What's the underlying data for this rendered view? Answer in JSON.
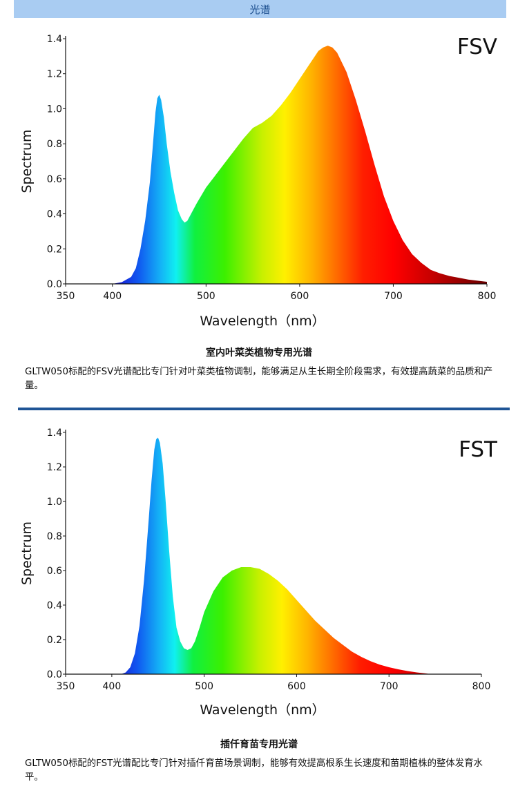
{
  "header": {
    "title": "光谱"
  },
  "colors": {
    "header_bg": "#a9ccf2",
    "divider": "#1f5596"
  },
  "chart_data": [
    {
      "type": "area",
      "title": "FSV",
      "xlabel": "Wavelength（nm）",
      "ylabel": "Spectrum",
      "xlim": [
        350,
        800
      ],
      "ylim": [
        0,
        1.4
      ],
      "xticks": [
        "350",
        "400",
        "500",
        "600",
        "700",
        "800"
      ],
      "yticks": [
        "0.0",
        "0.2",
        "0.4",
        "0.6",
        "0.8",
        "1.0",
        "1.2",
        "1.4"
      ],
      "x": [
        350,
        400,
        410,
        420,
        425,
        430,
        435,
        440,
        443,
        446,
        448,
        450,
        452,
        455,
        458,
        462,
        466,
        470,
        474,
        477,
        480,
        485,
        490,
        500,
        510,
        520,
        530,
        540,
        550,
        560,
        570,
        580,
        590,
        600,
        610,
        615,
        620,
        625,
        630,
        635,
        640,
        650,
        660,
        670,
        680,
        690,
        700,
        710,
        720,
        730,
        740,
        750,
        760,
        770,
        780,
        790,
        800
      ],
      "y": [
        0,
        0,
        0.01,
        0.04,
        0.09,
        0.2,
        0.36,
        0.58,
        0.78,
        0.98,
        1.06,
        1.08,
        1.05,
        0.95,
        0.8,
        0.64,
        0.52,
        0.42,
        0.37,
        0.35,
        0.36,
        0.41,
        0.46,
        0.55,
        0.62,
        0.69,
        0.76,
        0.83,
        0.89,
        0.92,
        0.96,
        1.02,
        1.09,
        1.17,
        1.25,
        1.29,
        1.33,
        1.35,
        1.36,
        1.35,
        1.32,
        1.21,
        1.05,
        0.87,
        0.68,
        0.5,
        0.36,
        0.25,
        0.17,
        0.12,
        0.08,
        0.06,
        0.045,
        0.035,
        0.025,
        0.018,
        0.012
      ]
    },
    {
      "type": "area",
      "title": "FST",
      "xlabel": "Wavelength（nm）",
      "ylabel": "Spectrum",
      "xlim": [
        350,
        800
      ],
      "ylim": [
        0,
        1.4
      ],
      "xticks": [
        "350",
        "400",
        "500",
        "600",
        "700",
        "800"
      ],
      "yticks": [
        "0.0",
        "0.2",
        "0.4",
        "0.6",
        "0.8",
        "1.0",
        "1.2",
        "1.4"
      ],
      "x": [
        350,
        410,
        415,
        420,
        425,
        430,
        435,
        440,
        443,
        446,
        448,
        450,
        452,
        455,
        458,
        462,
        466,
        470,
        474,
        478,
        482,
        486,
        490,
        495,
        500,
        510,
        520,
        530,
        540,
        550,
        560,
        570,
        580,
        590,
        600,
        610,
        620,
        630,
        640,
        650,
        660,
        670,
        680,
        690,
        700,
        710,
        720,
        730,
        740,
        745
      ],
      "y": [
        0,
        0,
        0.01,
        0.04,
        0.12,
        0.28,
        0.55,
        0.9,
        1.12,
        1.3,
        1.36,
        1.37,
        1.34,
        1.22,
        1.02,
        0.72,
        0.45,
        0.27,
        0.19,
        0.15,
        0.14,
        0.15,
        0.19,
        0.27,
        0.36,
        0.48,
        0.56,
        0.6,
        0.62,
        0.62,
        0.61,
        0.58,
        0.54,
        0.49,
        0.43,
        0.37,
        0.31,
        0.26,
        0.21,
        0.17,
        0.13,
        0.1,
        0.075,
        0.055,
        0.04,
        0.028,
        0.018,
        0.01,
        0.004,
        0
      ]
    }
  ],
  "sections": [
    {
      "title": "室内叶菜类植物专用光谱",
      "description": "GLTW050标配的FSV光谱配比专门针对叶菜类植物调制，能够满足从生长期全阶段需求，有效提高蔬菜的品质和产量。"
    },
    {
      "title": "插仟育苗专用光谱",
      "description": "GLTW050标配的FST光谱配比专门针对插仟育苗场景调制，能够有效提高根系生长速度和苗期植株的整体发育水平。"
    }
  ]
}
